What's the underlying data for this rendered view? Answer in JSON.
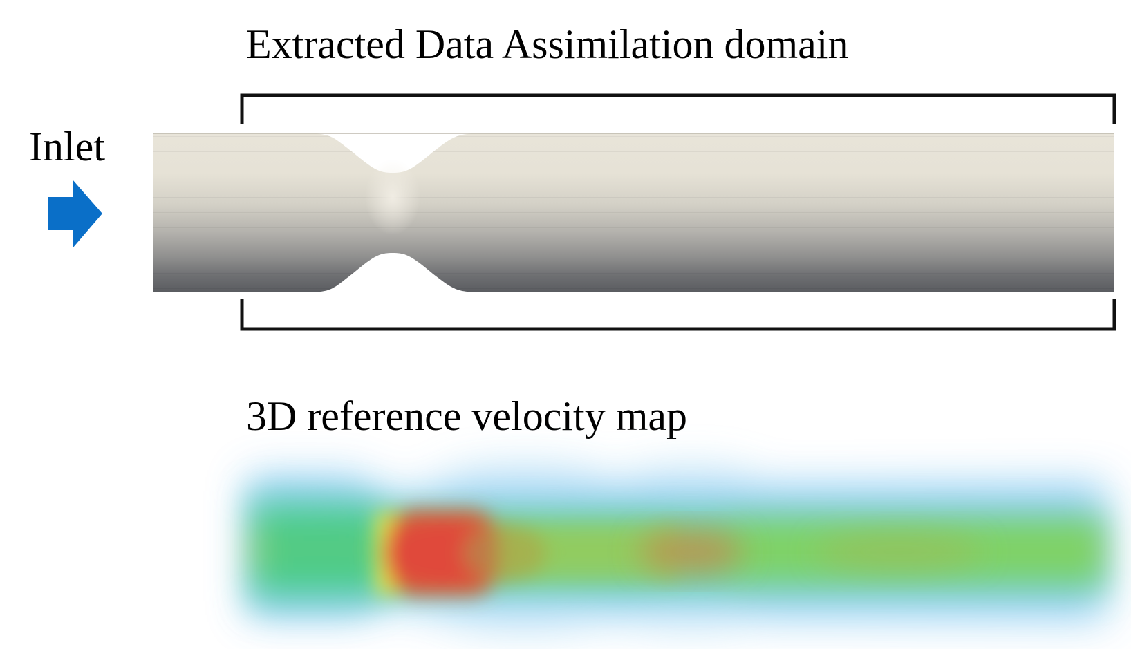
{
  "titles": {
    "domain_title": "Extracted Data Assimilation domain",
    "velocity_title": "3D reference velocity map"
  },
  "inlet": {
    "label": "Inlet",
    "arrow_icon": "right-arrow-icon",
    "arrow_color": "#0a6fc8"
  },
  "colors": {
    "pipe_light": "#ece8dd",
    "pipe_dark": "#5c5e62",
    "bracket": "#111111",
    "velocity_low": "#7ec8ef",
    "velocity_mid": "#4fd07a",
    "velocity_high": "#e2443a"
  }
}
